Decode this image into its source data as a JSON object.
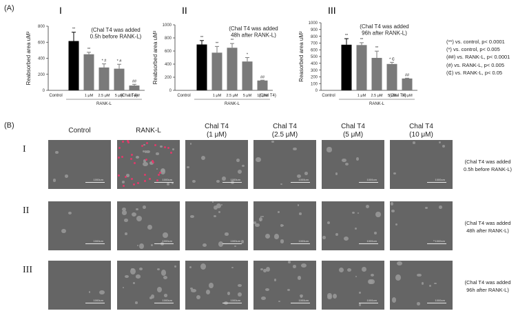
{
  "panel_a": {
    "label": "(A)"
  },
  "panel_b": {
    "label": "(B)"
  },
  "chart_data": [
    {
      "type": "bar",
      "panel": "I",
      "categories": [
        "Control",
        "RANK-L",
        "1 μM",
        "2.5 μM",
        "5 μM",
        "10 μM"
      ],
      "values": [
        0,
        615,
        450,
        285,
        270,
        60
      ],
      "errors": [
        0,
        110,
        25,
        45,
        55,
        15
      ],
      "annotations": [
        "",
        "**",
        "**",
        "* #",
        "* #",
        "##"
      ],
      "ylabel": "Reabsorbed area uM²",
      "ylim": [
        0,
        800
      ],
      "yticks": [
        0,
        200,
        400,
        600,
        800
      ],
      "group_label": "RANK-L",
      "unit_label": "(Chal T4)",
      "note": [
        "(Chal T4 was added",
        "0.5h before RANK-L)"
      ],
      "bar_colors": [
        "#000000",
        "#000000",
        "#7a7a7a",
        "#7a7a7a",
        "#7a7a7a",
        "#7a7a7a"
      ]
    },
    {
      "type": "bar",
      "panel": "II",
      "categories": [
        "Control",
        "RANK-L",
        "1 μM",
        "2.5 μM",
        "5 μM",
        "10 μM"
      ],
      "values": [
        0,
        700,
        575,
        650,
        440,
        150
      ],
      "errors": [
        0,
        60,
        95,
        65,
        60,
        5
      ],
      "annotations": [
        "",
        "**",
        "**",
        "**",
        "*",
        "##"
      ],
      "ylabel": "Reabsorbed area uM²",
      "ylim": [
        0,
        1000
      ],
      "yticks": [
        0,
        200,
        400,
        600,
        800,
        1000
      ],
      "group_label": "RANK-L",
      "unit_label": "(Chal T4)",
      "note": [
        "(Chal T4 was added",
        "48h after RANK-L)"
      ],
      "bar_colors": [
        "#000000",
        "#000000",
        "#7a7a7a",
        "#7a7a7a",
        "#7a7a7a",
        "#7a7a7a"
      ]
    },
    {
      "type": "bar",
      "panel": "III",
      "categories": [
        "Control",
        "RANK-L",
        "1 μM",
        "2.5 μM",
        "5 μM",
        "10 μM"
      ],
      "values": [
        0,
        675,
        670,
        480,
        390,
        175
      ],
      "errors": [
        0,
        90,
        35,
        100,
        25,
        5
      ],
      "annotations": [
        "",
        "**",
        "**",
        "**",
        "* ₵",
        "##"
      ],
      "ylabel": "Reasorbed area uM²",
      "ylim": [
        0,
        1000
      ],
      "yticks": [
        0,
        100,
        200,
        300,
        400,
        500,
        600,
        700,
        800,
        900,
        1000
      ],
      "group_label": "RANK-L",
      "unit_label": "(Chal T4)",
      "note": [
        "(Chal T4 was added",
        "96h after RANK-L)"
      ],
      "bar_colors": [
        "#000000",
        "#000000",
        "#7a7a7a",
        "#7a7a7a",
        "#7a7a7a",
        "#7a7a7a"
      ]
    }
  ],
  "legend": [
    "(**) vs. control, p< 0.0001",
    "(*) vs. control, p< 0.005",
    "(##) vs. RANK-L, p< 0.0001",
    "(#) vs. RANK-L, p< 0.005",
    "(₵) vs. RANK-L, p< 0.05"
  ],
  "grid": {
    "columns": [
      "Control",
      "RANK-L",
      "Chal T4\n(1 μM)",
      "Chal T4\n(2.5 μM)",
      "Chal T4\n(5 μM)",
      "Chal T4\n(10 μM)"
    ],
    "rows": [
      {
        "label": "I",
        "note": "(Chal T4 was added\n0.5h before RANK-L)"
      },
      {
        "label": "II",
        "note": "(Chal T4 was added\n48h after RANK-L)"
      },
      {
        "label": "III",
        "note": "(Chal T4 was added\n96h after RANK-L)"
      }
    ],
    "scale_bar": "1000um"
  }
}
